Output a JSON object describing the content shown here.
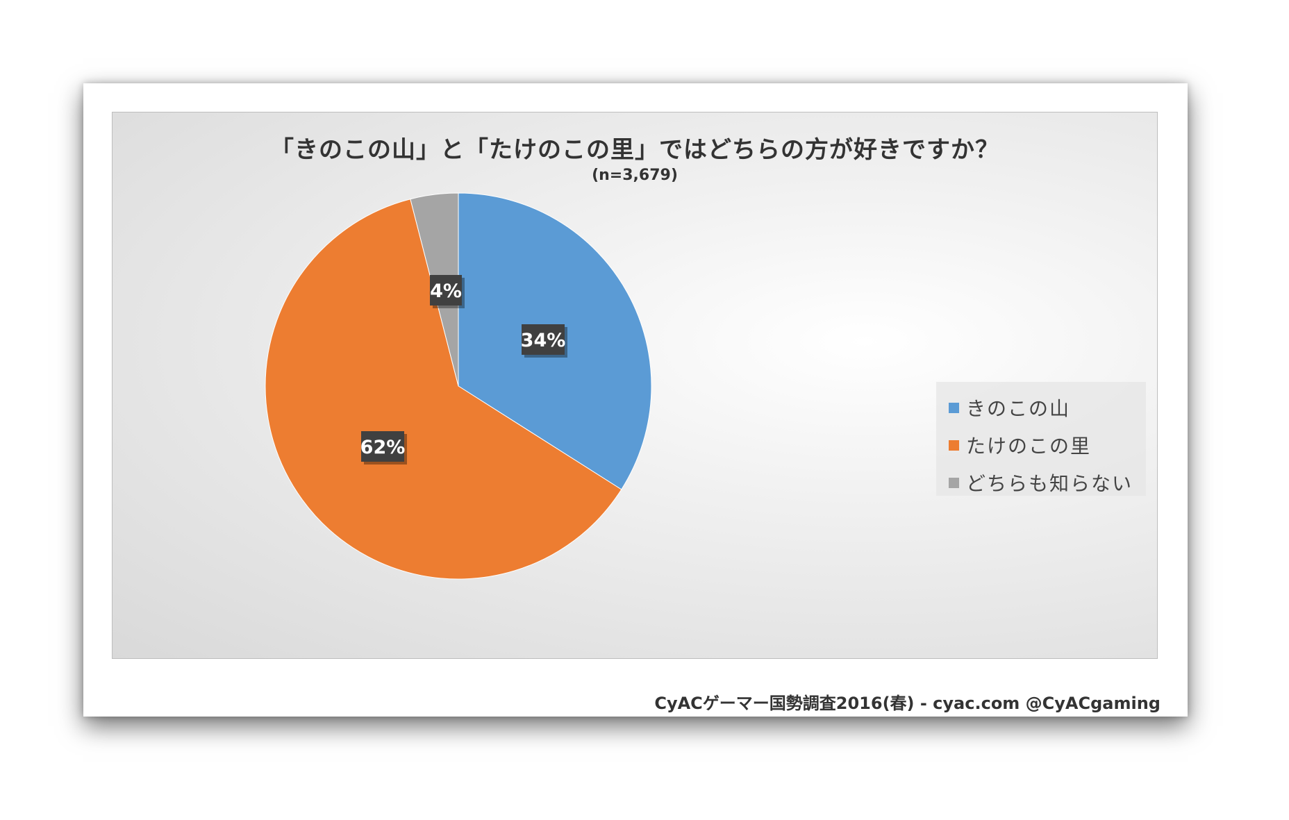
{
  "chart_data": {
    "type": "pie",
    "title": "「きのこの山」と「たけのこの里」ではどちらの方が好きですか？",
    "subtitle": "(n=3,679)",
    "start_angle_deg": 0,
    "direction": "clockwise",
    "legend_position": "right",
    "slices": [
      {
        "label": "きのこの山",
        "value": 34,
        "display": "34%",
        "color": "#5B9BD5"
      },
      {
        "label": "たけのこの里",
        "value": 62,
        "display": "62%",
        "color": "#ED7D31"
      },
      {
        "label": "どちらも知らない",
        "value": 4,
        "display": "4%",
        "color": "#A5A5A5"
      }
    ],
    "data_label_style": {
      "background": "#404040",
      "text_color": "#ffffff"
    }
  },
  "footer": "CyACゲーマー国勢調査2016(春) - cyac.com @CyACgaming"
}
